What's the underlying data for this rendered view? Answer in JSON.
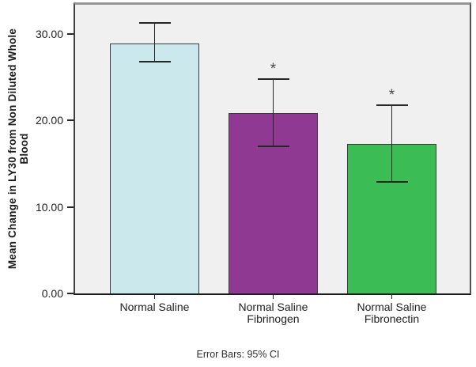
{
  "chart_data": {
    "type": "bar",
    "title": "",
    "ylabel": "Mean Change in LY30 from Non Diluted Whole Blood",
    "ylabel_lines": [
      "Mean Change in LY30 from Non Diluted Whole",
      "Blood"
    ],
    "xlabel": "",
    "categories": [
      "Normal Saline",
      "Normal Saline Fibrinogen",
      "Normal Saline Fibronectin"
    ],
    "category_label_lines": [
      [
        "Normal Saline"
      ],
      [
        "Normal Saline",
        "Fibrinogen"
      ],
      [
        "Normal Saline",
        "Fibronectin"
      ]
    ],
    "values": [
      28.9,
      20.9,
      17.3
    ],
    "error_bars": {
      "type": "95% CI",
      "low": [
        26.8,
        17.0,
        12.9
      ],
      "high": [
        31.3,
        24.8,
        21.8
      ]
    },
    "significance_markers": [
      "",
      "*",
      "*"
    ],
    "yticks": {
      "values": [
        0,
        10,
        20,
        30
      ],
      "labels": [
        "0.00",
        "10.00",
        "20.00",
        "30.00"
      ]
    },
    "ylim": [
      0,
      33.4
    ],
    "grid": false,
    "legend": "none",
    "footnote": "Error Bars: 95% CI",
    "colors": {
      "bars": [
        "#cbe9ed",
        "#8f3992",
        "#3bbc55"
      ],
      "bar_border": "#3c3c3c",
      "error_bar": "#262626",
      "plot_background": "#f1f0f0",
      "page_background": "#ffffff",
      "text": "#1f1f1f"
    }
  }
}
